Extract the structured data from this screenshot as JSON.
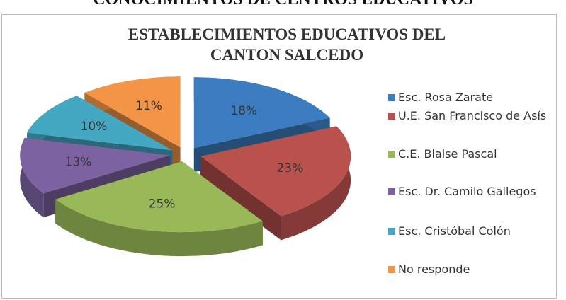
{
  "page_heading": "CONOCIMIENTOS DE CENTROS EDUCATIVOS",
  "chart_data": {
    "type": "pie3d",
    "title": "ESTABLECIMIENTOS EDUCATIVOS DEL CANTON SALCEDO",
    "categories": [
      "Esc. Rosa  Zarate",
      "U.E. San Francisco de Asís",
      "C.E. Blaise Pascal",
      "Esc. Dr. Camilo Gallegos",
      "Esc. Cristóbal Colón",
      "No responde"
    ],
    "values": [
      18,
      23,
      25,
      13,
      10,
      11
    ],
    "value_labels": [
      "18%",
      "23%",
      "25%",
      "13%",
      "10%",
      "11%"
    ],
    "colors": [
      "#3b7dc0",
      "#b9514d",
      "#99b958",
      "#7c62a0",
      "#45a8c3",
      "#f39446"
    ],
    "legend": "right"
  }
}
